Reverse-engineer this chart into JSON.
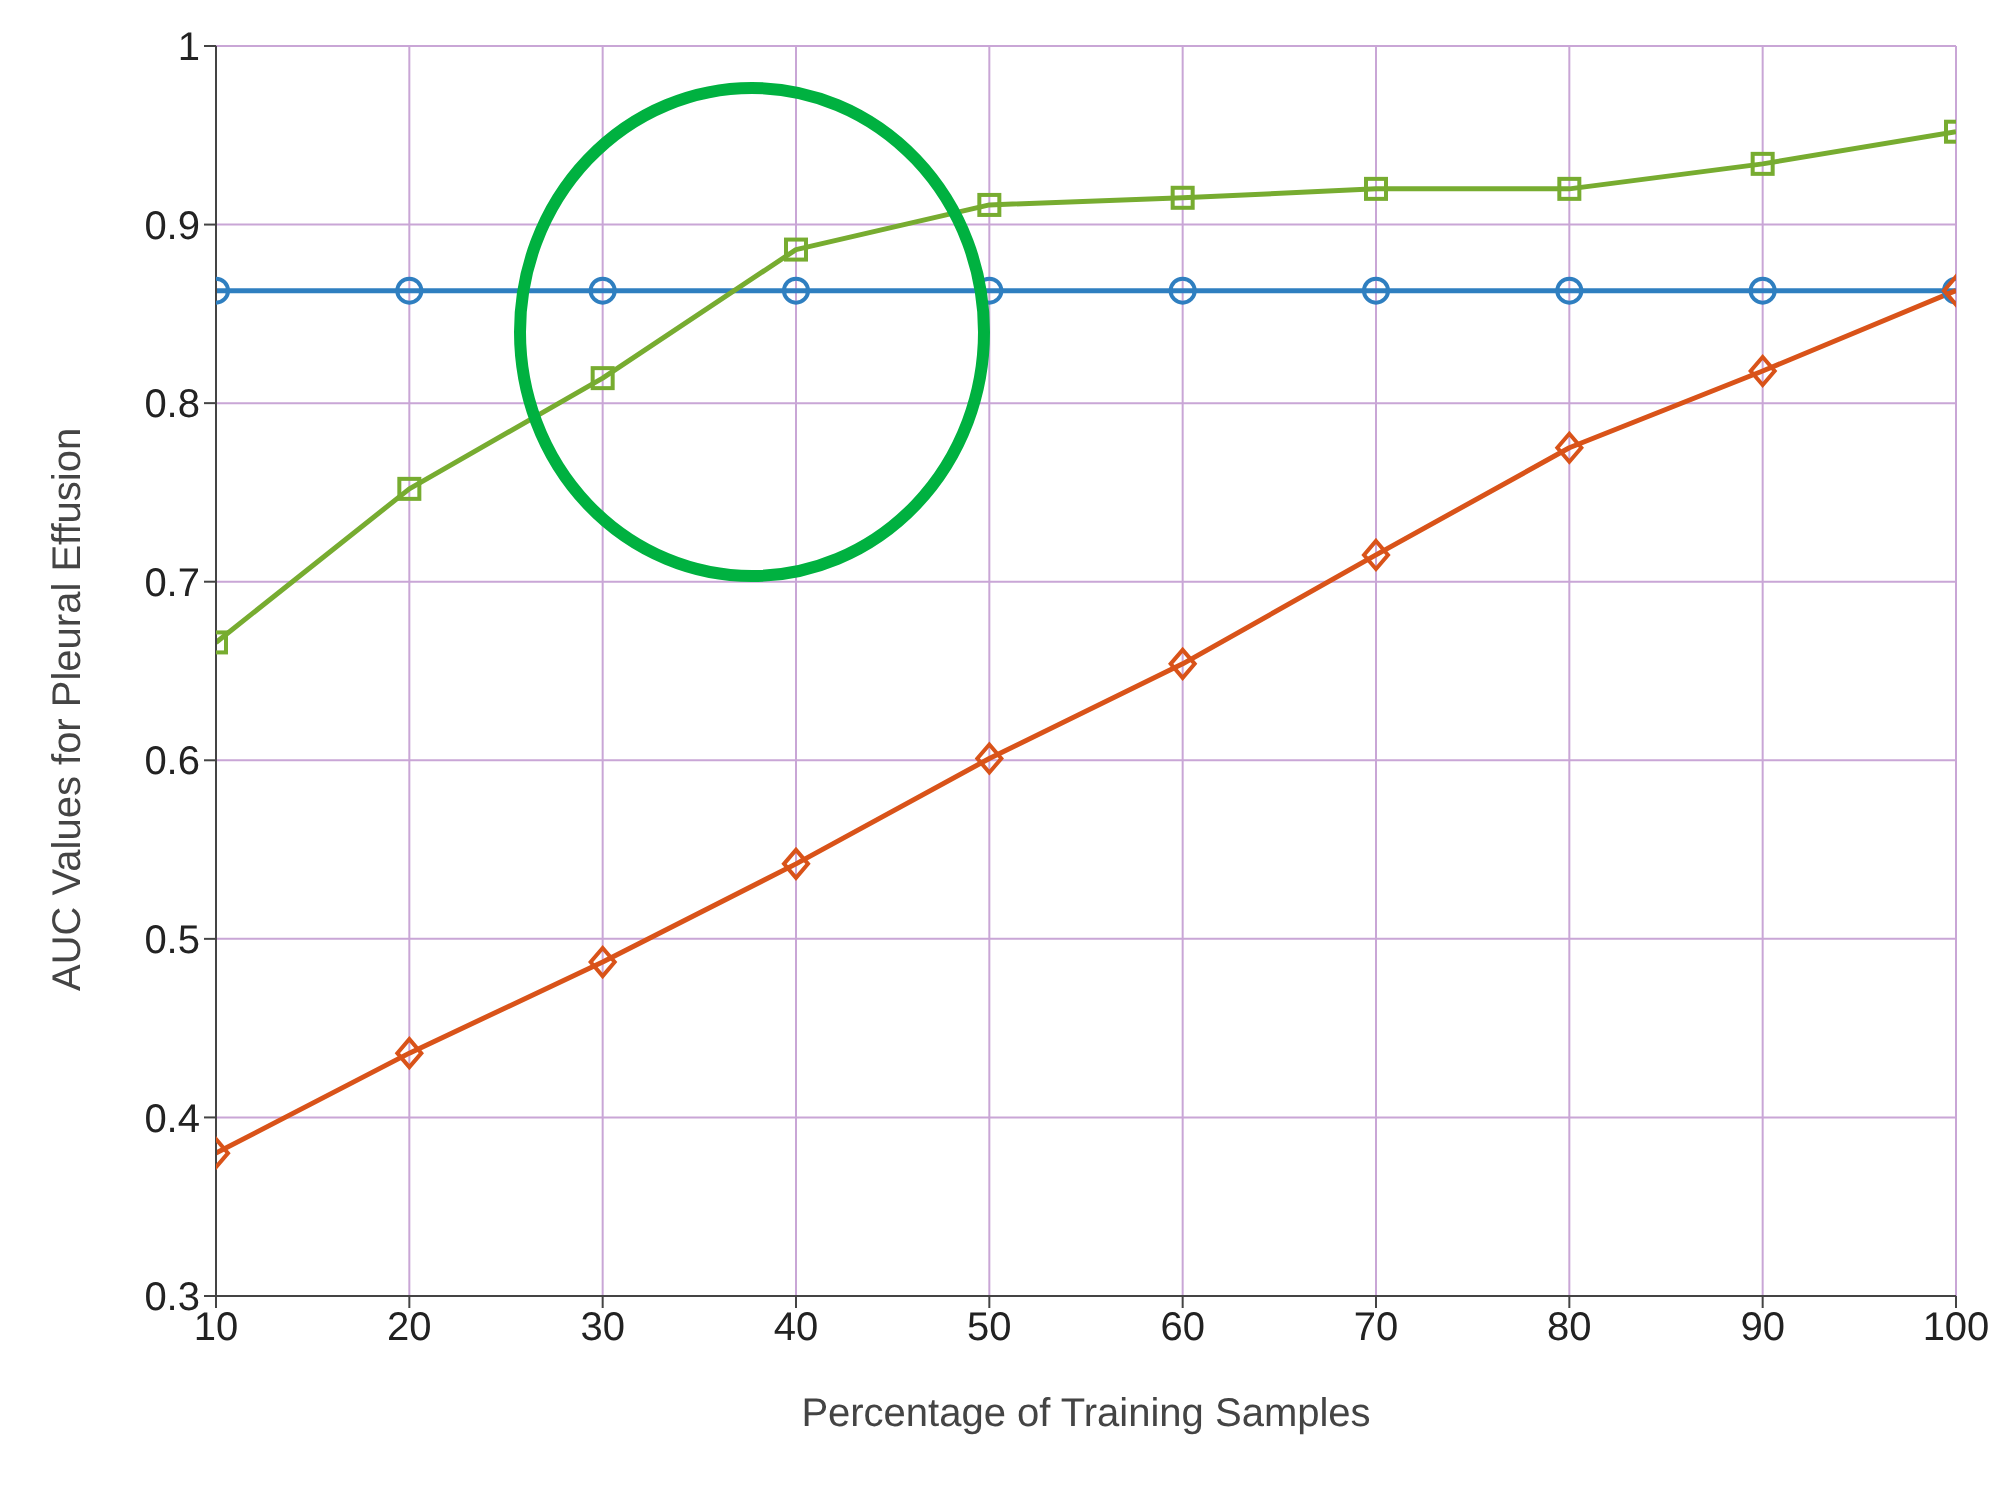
{
  "chart_data": {
    "type": "line",
    "xlabel": "Percentage of Training Samples",
    "ylabel": "AUC Values for Pleural Effusion",
    "x": [
      10,
      20,
      30,
      40,
      50,
      60,
      70,
      80,
      90,
      100
    ],
    "series": [
      {
        "color": "#2f7fc0",
        "marker": "circle",
        "values": [
          0.863,
          0.863,
          0.863,
          0.863,
          0.863,
          0.863,
          0.863,
          0.863,
          0.863,
          0.863
        ]
      },
      {
        "color": "#77ac30",
        "marker": "square",
        "values": [
          0.666,
          0.752,
          0.814,
          0.886,
          0.911,
          0.915,
          0.92,
          0.92,
          0.934,
          0.952
        ]
      },
      {
        "color": "#d95319",
        "marker": "diamond",
        "values": [
          0.38,
          0.436,
          0.487,
          0.542,
          0.601,
          0.654,
          0.715,
          0.775,
          0.818,
          0.863
        ]
      }
    ],
    "xlim": [
      10,
      100
    ],
    "xticks": [
      10,
      20,
      30,
      40,
      50,
      60,
      70,
      80,
      90,
      100
    ],
    "ylim": [
      0.3,
      1
    ],
    "yticks": [
      0.3,
      0.4,
      0.5,
      0.6,
      0.7,
      0.8,
      0.9,
      1
    ],
    "grid": true,
    "legend": false
  }
}
